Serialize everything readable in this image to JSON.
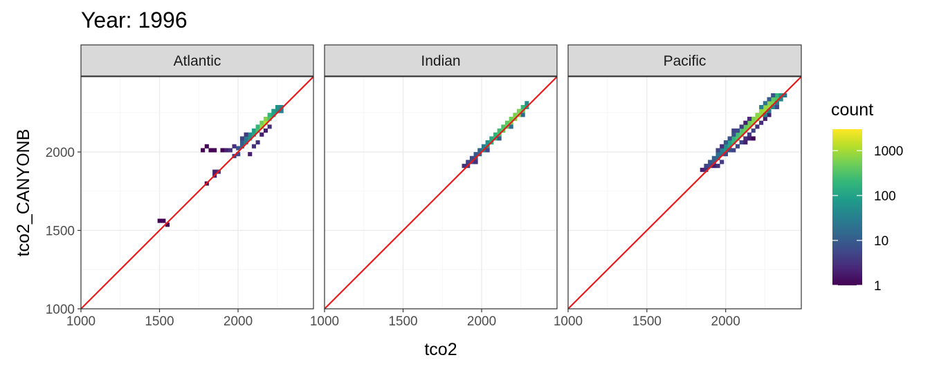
{
  "chart_data": {
    "type": "heatmap",
    "title": "Year: 1996",
    "xlabel": "tco2",
    "ylabel": "tco2_CANYONB",
    "xlim": [
      1000,
      2480
    ],
    "ylim": [
      1000,
      2480
    ],
    "x_ticks": [
      1000,
      1500,
      2000
    ],
    "y_ticks": [
      1000,
      1500,
      2000
    ],
    "bin_width": 25,
    "identity_line": {
      "slope": 1,
      "intercept": 0,
      "color": "#e41a1c"
    },
    "grid": true,
    "legend": {
      "title": "count",
      "scale": "log10",
      "range": [
        1,
        3000
      ],
      "ticks": [
        1,
        10,
        100,
        1000
      ],
      "tick_labels": [
        "1",
        "10",
        "100",
        "1000"
      ],
      "placement": "right",
      "colors": [
        "#440154",
        "#482878",
        "#3e4a89",
        "#31688e",
        "#26828e",
        "#1f9e89",
        "#35b779",
        "#6ece58",
        "#b5de2b",
        "#fde725"
      ]
    },
    "panels": [
      {
        "name": "Atlantic",
        "bins": [
          [
            1500,
            1562,
            1
          ],
          [
            1525,
            1562,
            1
          ],
          [
            1550,
            1537,
            1
          ],
          [
            1775,
            2012,
            1
          ],
          [
            1800,
            2037,
            1
          ],
          [
            1825,
            2012,
            1
          ],
          [
            1850,
            2012,
            1
          ],
          [
            1800,
            1800,
            1
          ],
          [
            1850,
            1850,
            2
          ],
          [
            1875,
            1875,
            3
          ],
          [
            1850,
            1875,
            2
          ],
          [
            1900,
            2012,
            1
          ],
          [
            1925,
            2012,
            2
          ],
          [
            1950,
            2012,
            3
          ],
          [
            1975,
            1975,
            4
          ],
          [
            2000,
            1987,
            6
          ],
          [
            2000,
            2025,
            8
          ],
          [
            2025,
            2037,
            12
          ],
          [
            2025,
            2062,
            10
          ],
          [
            2050,
            2062,
            30
          ],
          [
            2050,
            2087,
            25
          ],
          [
            2075,
            2087,
            60
          ],
          [
            2075,
            2112,
            50
          ],
          [
            2100,
            2112,
            120
          ],
          [
            2100,
            2137,
            90
          ],
          [
            2125,
            2137,
            300
          ],
          [
            2125,
            2162,
            200
          ],
          [
            2150,
            2162,
            800
          ],
          [
            2150,
            2187,
            500
          ],
          [
            2175,
            2187,
            1200
          ],
          [
            2175,
            2212,
            700
          ],
          [
            2200,
            2212,
            300
          ],
          [
            2200,
            2237,
            200
          ],
          [
            2225,
            2237,
            100
          ],
          [
            2225,
            2262,
            80
          ],
          [
            2250,
            2262,
            50
          ],
          [
            2250,
            2287,
            60
          ],
          [
            2275,
            2262,
            30
          ],
          [
            2275,
            2287,
            40
          ],
          [
            2075,
            1987,
            2
          ],
          [
            2100,
            2037,
            3
          ],
          [
            2125,
            2062,
            3
          ],
          [
            2050,
            2112,
            4
          ],
          [
            2025,
            2087,
            5
          ],
          [
            2175,
            2137,
            2
          ],
          [
            2200,
            2162,
            3
          ],
          [
            2150,
            2112,
            2
          ],
          [
            1975,
            2037,
            3
          ]
        ]
      },
      {
        "name": "Indian",
        "bins": [
          [
            1887,
            1912,
            3
          ],
          [
            1912,
            1912,
            4
          ],
          [
            1912,
            1937,
            5
          ],
          [
            1937,
            1937,
            6
          ],
          [
            1937,
            1962,
            6
          ],
          [
            1962,
            1962,
            8
          ],
          [
            1962,
            1987,
            10
          ],
          [
            1987,
            1987,
            15
          ],
          [
            1987,
            2012,
            12
          ],
          [
            2012,
            2012,
            40
          ],
          [
            2012,
            2037,
            30
          ],
          [
            2037,
            2037,
            80
          ],
          [
            2037,
            2062,
            60
          ],
          [
            2062,
            2062,
            150
          ],
          [
            2062,
            2087,
            120
          ],
          [
            2087,
            2087,
            200
          ],
          [
            2087,
            2112,
            180
          ],
          [
            2112,
            2112,
            300
          ],
          [
            2112,
            2137,
            250
          ],
          [
            2137,
            2137,
            400
          ],
          [
            2137,
            2162,
            300
          ],
          [
            2162,
            2162,
            500
          ],
          [
            2162,
            2187,
            400
          ],
          [
            2187,
            2187,
            600
          ],
          [
            2187,
            2212,
            500
          ],
          [
            2212,
            2212,
            700
          ],
          [
            2212,
            2237,
            600
          ],
          [
            2237,
            2237,
            800
          ],
          [
            2237,
            2262,
            600
          ],
          [
            2262,
            2262,
            400
          ],
          [
            2262,
            2287,
            200
          ],
          [
            2287,
            2287,
            100
          ],
          [
            2287,
            2312,
            50
          ],
          [
            1962,
            1937,
            3
          ],
          [
            2037,
            2012,
            6
          ],
          [
            2112,
            2087,
            10
          ],
          [
            2187,
            2162,
            20
          ],
          [
            2262,
            2237,
            15
          ]
        ]
      },
      {
        "name": "Pacific",
        "bins": [
          [
            1850,
            1887,
            2
          ],
          [
            1875,
            1887,
            3
          ],
          [
            1875,
            1912,
            5
          ],
          [
            1900,
            1912,
            6
          ],
          [
            1900,
            1937,
            8
          ],
          [
            1925,
            1937,
            10
          ],
          [
            1925,
            1962,
            12
          ],
          [
            1950,
            1962,
            15
          ],
          [
            1950,
            1987,
            18
          ],
          [
            1975,
            1987,
            25
          ],
          [
            1975,
            2012,
            30
          ],
          [
            2000,
            2012,
            60
          ],
          [
            2000,
            2037,
            50
          ],
          [
            2025,
            2037,
            120
          ],
          [
            2025,
            2062,
            100
          ],
          [
            2050,
            2062,
            200
          ],
          [
            2050,
            2087,
            180
          ],
          [
            2075,
            2087,
            300
          ],
          [
            2075,
            2112,
            250
          ],
          [
            2100,
            2112,
            400
          ],
          [
            2100,
            2137,
            350
          ],
          [
            2125,
            2137,
            500
          ],
          [
            2125,
            2162,
            400
          ],
          [
            2150,
            2162,
            600
          ],
          [
            2150,
            2187,
            500
          ],
          [
            2175,
            2187,
            700
          ],
          [
            2175,
            2212,
            600
          ],
          [
            2200,
            2212,
            800
          ],
          [
            2200,
            2237,
            700
          ],
          [
            2225,
            2237,
            900
          ],
          [
            2225,
            2262,
            800
          ],
          [
            2250,
            2262,
            1000
          ],
          [
            2250,
            2287,
            800
          ],
          [
            2275,
            2287,
            900
          ],
          [
            2275,
            2312,
            700
          ],
          [
            2300,
            2312,
            600
          ],
          [
            2300,
            2337,
            400
          ],
          [
            2325,
            2337,
            300
          ],
          [
            2325,
            2362,
            200
          ],
          [
            2350,
            2362,
            60
          ],
          [
            2350,
            2337,
            40
          ],
          [
            2375,
            2362,
            20
          ],
          [
            2300,
            2287,
            50
          ],
          [
            2325,
            2312,
            30
          ],
          [
            1925,
            1912,
            2
          ],
          [
            1950,
            1912,
            3
          ],
          [
            1975,
            1937,
            4
          ],
          [
            1950,
            2012,
            5
          ],
          [
            1975,
            2037,
            3
          ],
          [
            2000,
            1987,
            6
          ],
          [
            2025,
            2012,
            8
          ],
          [
            2050,
            2012,
            5
          ],
          [
            2075,
            2037,
            6
          ],
          [
            2100,
            2062,
            5
          ],
          [
            2125,
            2087,
            3
          ],
          [
            2150,
            2112,
            4
          ],
          [
            2175,
            2137,
            5
          ],
          [
            2200,
            2162,
            3
          ],
          [
            2225,
            2187,
            3
          ],
          [
            2250,
            2212,
            2
          ],
          [
            2275,
            2237,
            2
          ],
          [
            2050,
            2112,
            8
          ],
          [
            2075,
            2137,
            6
          ],
          [
            2100,
            2162,
            4
          ],
          [
            2125,
            2187,
            2
          ],
          [
            2150,
            2212,
            3
          ],
          [
            2000,
            2062,
            10
          ],
          [
            2025,
            2087,
            8
          ],
          [
            2050,
            2137,
            5
          ],
          [
            2150,
            2087,
            2
          ],
          [
            2175,
            2087,
            1
          ],
          [
            2125,
            2062,
            2
          ],
          [
            2225,
            2287,
            30
          ],
          [
            2250,
            2312,
            20
          ],
          [
            2275,
            2337,
            10
          ],
          [
            2300,
            2362,
            8
          ],
          [
            2325,
            2287,
            6
          ],
          [
            2250,
            2237,
            40
          ],
          [
            2275,
            2262,
            30
          ]
        ]
      }
    ]
  }
}
